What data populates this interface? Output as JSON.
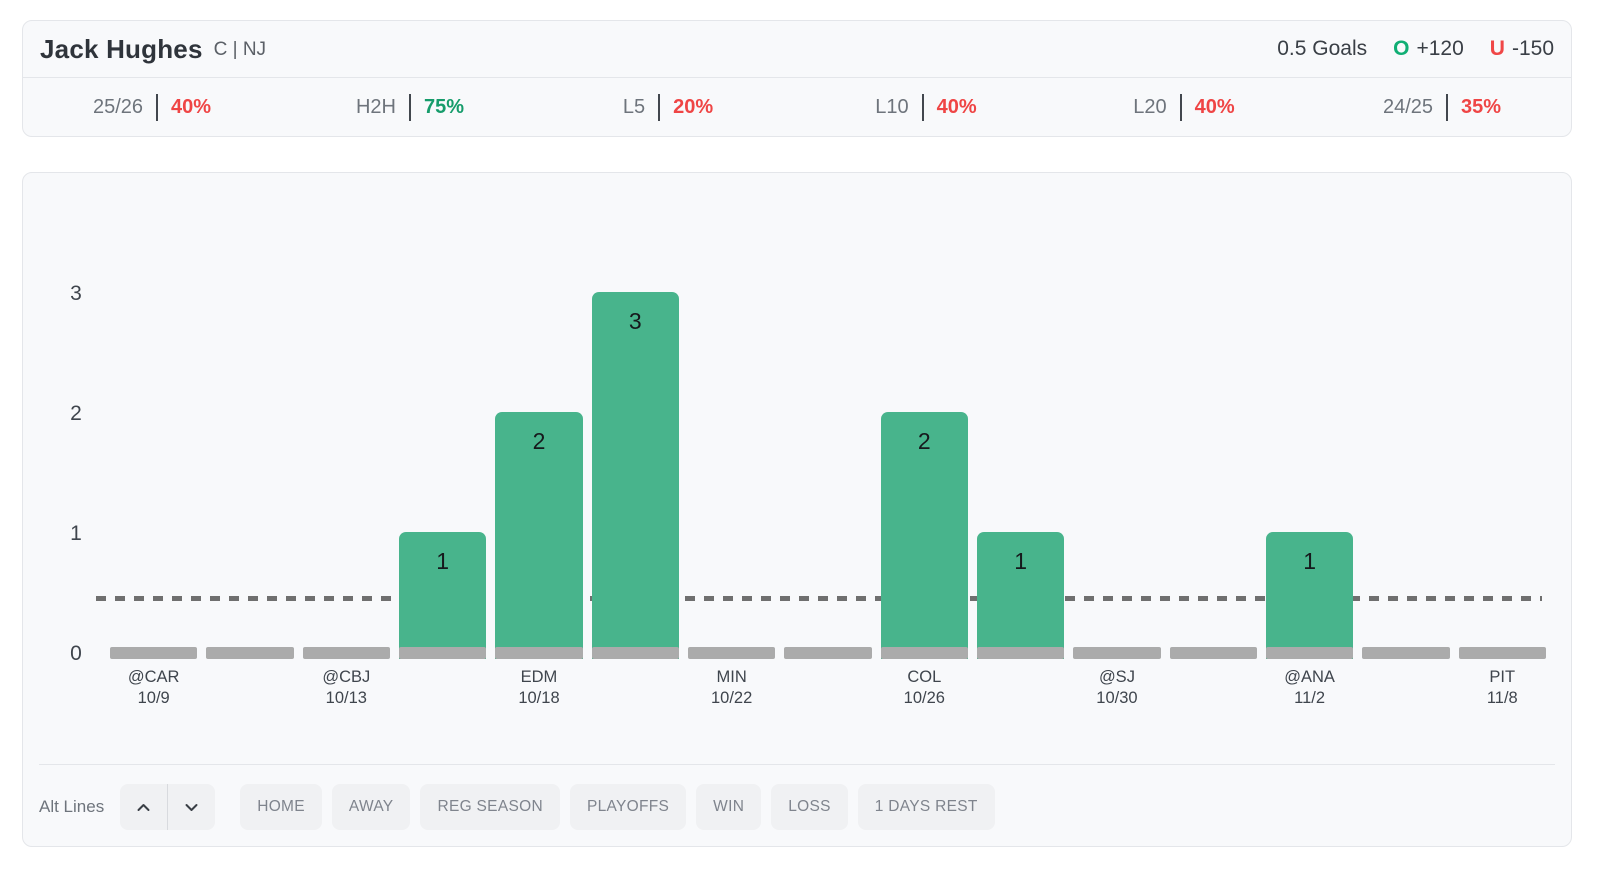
{
  "player": {
    "name": "Jack Hughes",
    "meta": "C | NJ"
  },
  "market": {
    "line_label": "0.5 Goals",
    "over_mark": "O",
    "over_odds": "+120",
    "under_mark": "U",
    "under_odds": "-150"
  },
  "splits": [
    {
      "label": "25/26",
      "value": "40%",
      "color": "red"
    },
    {
      "label": "H2H",
      "value": "75%",
      "color": "green"
    },
    {
      "label": "L5",
      "value": "20%",
      "color": "red"
    },
    {
      "label": "L10",
      "value": "40%",
      "color": "red"
    },
    {
      "label": "L20",
      "value": "40%",
      "color": "red"
    },
    {
      "label": "24/25",
      "value": "35%",
      "color": "red"
    }
  ],
  "chart_data": {
    "type": "bar",
    "stat": "Goals",
    "betting_line": 0.5,
    "y_ticks": [
      0,
      1,
      2,
      3
    ],
    "ylim": [
      0,
      3.5
    ],
    "games": [
      {
        "opponent": "@CAR",
        "date": "10/9",
        "value": 0
      },
      {
        "opponent": "",
        "date": "",
        "value": 0
      },
      {
        "opponent": "@CBJ",
        "date": "10/13",
        "value": 0
      },
      {
        "opponent": "",
        "date": "",
        "value": 1
      },
      {
        "opponent": "EDM",
        "date": "10/18",
        "value": 2
      },
      {
        "opponent": "",
        "date": "",
        "value": 3
      },
      {
        "opponent": "MIN",
        "date": "10/22",
        "value": 0
      },
      {
        "opponent": "",
        "date": "",
        "value": 0
      },
      {
        "opponent": "COL",
        "date": "10/26",
        "value": 2
      },
      {
        "opponent": "",
        "date": "",
        "value": 1
      },
      {
        "opponent": "@SJ",
        "date": "10/30",
        "value": 0
      },
      {
        "opponent": "",
        "date": "",
        "value": 0
      },
      {
        "opponent": "@ANA",
        "date": "11/2",
        "value": 1
      },
      {
        "opponent": "",
        "date": "",
        "value": 0
      },
      {
        "opponent": "PIT",
        "date": "11/8",
        "value": 0
      }
    ]
  },
  "controls": {
    "alt_lines_label": "Alt Lines",
    "filters": [
      "HOME",
      "AWAY",
      "REG SEASON",
      "PLAYOFFS",
      "WIN",
      "LOSS",
      "1 DAYS REST"
    ]
  },
  "colors": {
    "bar_green": "#48b48c",
    "baseline_stub": "#ababab",
    "dash_line": "#6f6f6f",
    "stat_red": "#ef4545",
    "stat_green": "#169c6b",
    "over_green": "#10ae74",
    "under_red": "#f04747"
  }
}
